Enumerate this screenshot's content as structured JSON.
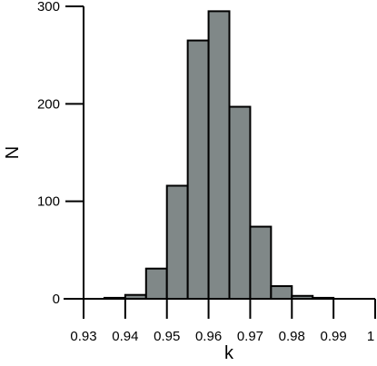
{
  "chart_data": {
    "type": "bar",
    "style": "histogram",
    "xlabel": "k",
    "ylabel": "N",
    "xlim": [
      0.93,
      1.0
    ],
    "ylim": [
      0,
      300
    ],
    "x_ticks": [
      0.93,
      0.94,
      0.95,
      0.96,
      0.97,
      0.98,
      0.99,
      1.0
    ],
    "x_tick_labels": [
      "0.93",
      "0.94",
      "0.95",
      "0.96",
      "0.97",
      "0.98",
      "0.99",
      "1"
    ],
    "y_ticks": [
      0,
      100,
      200,
      300
    ],
    "y_tick_labels": [
      "0",
      "100",
      "200",
      "300"
    ],
    "bin_width": 0.005,
    "bins": [
      {
        "x0": 0.935,
        "x1": 0.94,
        "value": 1
      },
      {
        "x0": 0.94,
        "x1": 0.945,
        "value": 4
      },
      {
        "x0": 0.945,
        "x1": 0.95,
        "value": 31
      },
      {
        "x0": 0.95,
        "x1": 0.955,
        "value": 116
      },
      {
        "x0": 0.955,
        "x1": 0.96,
        "value": 265
      },
      {
        "x0": 0.96,
        "x1": 0.965,
        "value": 295
      },
      {
        "x0": 0.965,
        "x1": 0.97,
        "value": 197
      },
      {
        "x0": 0.97,
        "x1": 0.975,
        "value": 74
      },
      {
        "x0": 0.975,
        "x1": 0.98,
        "value": 13
      },
      {
        "x0": 0.98,
        "x1": 0.985,
        "value": 3
      },
      {
        "x0": 0.985,
        "x1": 0.99,
        "value": 1
      }
    ],
    "bar_color": "#808888",
    "bar_edge_color": "#000000",
    "grid": false
  }
}
